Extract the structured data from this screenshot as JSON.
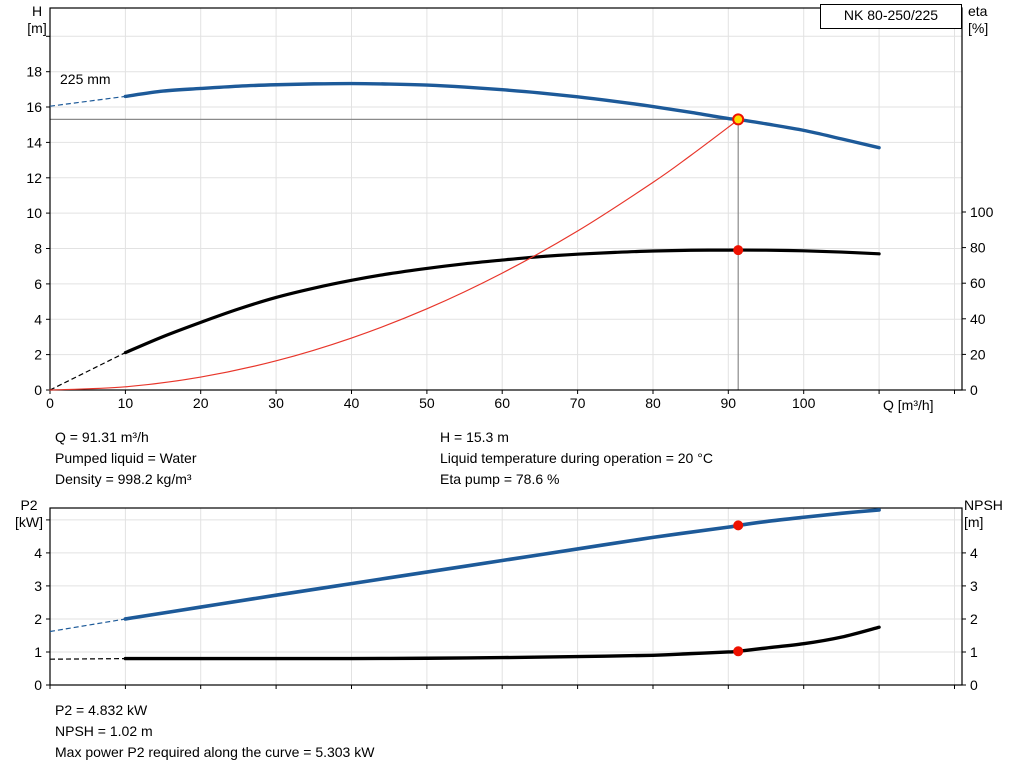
{
  "model_label": "NK 80-250/225",
  "impeller_label": "225 mm",
  "colors": {
    "curve_blue": "#1d5a99",
    "curve_black": "#000000",
    "curve_red": "#e8362b",
    "marker_red": "#ee1100",
    "marker_yellow": "#ffdd00",
    "crosshair_gray": "#8a8a8a",
    "grid": "#e2e2e2"
  },
  "info_top": {
    "col1": [
      "Q = 91.31 m³/h",
      "Pumped liquid = Water",
      "Density = 998.2 kg/m³"
    ],
    "col2": [
      "H = 15.3 m",
      "Liquid temperature during operation = 20 °C",
      "Eta pump = 78.6 %"
    ]
  },
  "info_bottom": [
    "P2 = 4.832 kW",
    "NPSH = 1.02 m",
    "Max power P2 required along the curve = 5.303 kW"
  ],
  "chart_data": [
    {
      "type": "line",
      "name": "qh-eta-chart",
      "xlabel": "Q [m³/h]",
      "ylabel_left_lines": [
        "H",
        "[m]"
      ],
      "ylabel_right_lines": [
        "eta",
        "[%]"
      ],
      "xlim": [
        0,
        121
      ],
      "ylim_left": [
        0,
        21.6
      ],
      "ylim_right": [
        0,
        214.6
      ],
      "x_ticks": [
        [
          0,
          "0"
        ],
        [
          10,
          "10"
        ],
        [
          20,
          "20"
        ],
        [
          30,
          "30"
        ],
        [
          40,
          "40"
        ],
        [
          50,
          "50"
        ],
        [
          60,
          "60"
        ],
        [
          70,
          "70"
        ],
        [
          80,
          "80"
        ],
        [
          90,
          "90"
        ],
        [
          100,
          "100"
        ],
        [
          110,
          ""
        ],
        [
          120,
          ""
        ]
      ],
      "y_ticks_left": [
        [
          0,
          "0"
        ],
        [
          2,
          "2"
        ],
        [
          4,
          "4"
        ],
        [
          6,
          "6"
        ],
        [
          8,
          "8"
        ],
        [
          10,
          "10"
        ],
        [
          12,
          "12"
        ],
        [
          14,
          "14"
        ],
        [
          16,
          "16"
        ],
        [
          18,
          "18"
        ],
        [
          20,
          ""
        ]
      ],
      "y_ticks_right": [
        [
          0,
          "0"
        ],
        [
          20,
          "20"
        ],
        [
          40,
          "40"
        ],
        [
          60,
          "60"
        ],
        [
          80,
          "80"
        ],
        [
          100,
          "100"
        ]
      ],
      "crosshair": {
        "q": 91.31,
        "v": 15.3
      },
      "duty_point": {
        "Q_m3h": 91.31,
        "H_m": 15.3,
        "eta_pct": 78.6
      },
      "series": [
        {
          "name": "head-curve-225mm",
          "axis": "left",
          "color": "curve_blue",
          "width": 3.4,
          "lead": [
            [
              0,
              16.05
            ],
            [
              10,
              16.6
            ]
          ],
          "points": [
            [
              10,
              16.6
            ],
            [
              15,
              16.9
            ],
            [
              20,
              17.05
            ],
            [
              25,
              17.18
            ],
            [
              30,
              17.26
            ],
            [
              35,
              17.31
            ],
            [
              40,
              17.33
            ],
            [
              45,
              17.3
            ],
            [
              50,
              17.24
            ],
            [
              55,
              17.13
            ],
            [
              60,
              16.98
            ],
            [
              65,
              16.8
            ],
            [
              70,
              16.58
            ],
            [
              75,
              16.32
            ],
            [
              80,
              16.03
            ],
            [
              85,
              15.7
            ],
            [
              90,
              15.35
            ],
            [
              91.31,
              15.3
            ],
            [
              95,
              15.05
            ],
            [
              100,
              14.68
            ],
            [
              105,
              14.2
            ],
            [
              110,
              13.7
            ]
          ]
        },
        {
          "name": "efficiency-curve",
          "axis": "right",
          "color": "curve_black",
          "width": 3.2,
          "lead": [
            [
              0,
              0
            ],
            [
              10,
              21
            ]
          ],
          "points": [
            [
              10,
              21
            ],
            [
              15,
              30
            ],
            [
              20,
              38
            ],
            [
              25,
              45.5
            ],
            [
              30,
              52
            ],
            [
              35,
              57.2
            ],
            [
              40,
              61.6
            ],
            [
              45,
              65.3
            ],
            [
              50,
              68.3
            ],
            [
              55,
              70.9
            ],
            [
              60,
              73
            ],
            [
              65,
              74.9
            ],
            [
              70,
              76.3
            ],
            [
              75,
              77.3
            ],
            [
              80,
              78.1
            ],
            [
              85,
              78.5
            ],
            [
              90,
              78.6
            ],
            [
              95,
              78.55
            ],
            [
              100,
              78.2
            ],
            [
              105,
              77.5
            ],
            [
              110,
              76.5
            ]
          ]
        },
        {
          "name": "system-curve",
          "axis": "left",
          "color": "curve_red",
          "width": 1.2,
          "points": [
            [
              0,
              0
            ],
            [
              10,
              0.18
            ],
            [
              20,
              0.73
            ],
            [
              30,
              1.65
            ],
            [
              40,
              2.94
            ],
            [
              50,
              4.59
            ],
            [
              60,
              6.61
            ],
            [
              70,
              8.99
            ],
            [
              80,
              11.74
            ],
            [
              85,
              13.26
            ],
            [
              90,
              14.86
            ],
            [
              91.31,
              15.3
            ]
          ]
        }
      ],
      "markers": [
        {
          "name": "duty-point-head-marker",
          "axis": "left",
          "q": 91.31,
          "v": 15.3,
          "style": "yellow"
        },
        {
          "name": "duty-point-eta-marker",
          "axis": "right",
          "q": 91.31,
          "v": 78.6,
          "style": "red"
        }
      ]
    },
    {
      "type": "line",
      "name": "p2-npsh-chart",
      "ylabel_left_lines": [
        "P2",
        "[kW]"
      ],
      "ylabel_right_lines": [
        "NPSH",
        "[m]"
      ],
      "xlim": [
        0,
        121
      ],
      "ylim_left": [
        0,
        5.36
      ],
      "ylim_right": [
        0,
        5.36
      ],
      "x_ticks": [
        [
          0,
          ""
        ],
        [
          10,
          ""
        ],
        [
          20,
          ""
        ],
        [
          30,
          ""
        ],
        [
          40,
          ""
        ],
        [
          50,
          ""
        ],
        [
          60,
          ""
        ],
        [
          70,
          ""
        ],
        [
          80,
          ""
        ],
        [
          90,
          ""
        ],
        [
          100,
          ""
        ],
        [
          110,
          ""
        ],
        [
          120,
          ""
        ]
      ],
      "y_ticks_left": [
        [
          0,
          "0"
        ],
        [
          1,
          "1"
        ],
        [
          2,
          "2"
        ],
        [
          3,
          "3"
        ],
        [
          4,
          "4"
        ],
        [
          5,
          ""
        ]
      ],
      "y_ticks_right": [
        [
          0,
          "0"
        ],
        [
          1,
          "1"
        ],
        [
          2,
          "2"
        ],
        [
          3,
          "3"
        ],
        [
          4,
          "4"
        ]
      ],
      "duty_point": {
        "Q_m3h": 91.31,
        "P2_kW": 4.832,
        "NPSH_m": 1.02
      },
      "series": [
        {
          "name": "p2-curve",
          "axis": "left",
          "color": "curve_blue",
          "width": 3.6,
          "lead": [
            [
              0,
              1.62
            ],
            [
              10,
              2.0
            ]
          ],
          "points": [
            [
              10,
              2.0
            ],
            [
              20,
              2.36
            ],
            [
              30,
              2.72
            ],
            [
              40,
              3.07
            ],
            [
              50,
              3.42
            ],
            [
              60,
              3.77
            ],
            [
              70,
              4.12
            ],
            [
              80,
              4.47
            ],
            [
              90,
              4.78
            ],
            [
              91.31,
              4.832
            ],
            [
              95,
              4.95
            ],
            [
              100,
              5.08
            ],
            [
              105,
              5.2
            ],
            [
              110,
              5.3
            ]
          ]
        },
        {
          "name": "npsh-curve",
          "axis": "right",
          "color": "curve_black",
          "width": 3.4,
          "lead": [
            [
              0,
              0.78
            ],
            [
              10,
              0.8
            ]
          ],
          "points": [
            [
              10,
              0.8
            ],
            [
              20,
              0.8
            ],
            [
              30,
              0.8
            ],
            [
              40,
              0.8
            ],
            [
              50,
              0.81
            ],
            [
              60,
              0.83
            ],
            [
              70,
              0.86
            ],
            [
              80,
              0.9
            ],
            [
              85,
              0.95
            ],
            [
              90,
              1.0
            ],
            [
              91.31,
              1.02
            ],
            [
              95,
              1.12
            ],
            [
              100,
              1.25
            ],
            [
              105,
              1.45
            ],
            [
              110,
              1.75
            ]
          ]
        }
      ],
      "markers": [
        {
          "name": "duty-point-p2-marker",
          "axis": "left",
          "q": 91.31,
          "v": 4.832,
          "style": "red"
        },
        {
          "name": "duty-point-npsh-marker",
          "axis": "right",
          "q": 91.31,
          "v": 1.02,
          "style": "red"
        }
      ]
    }
  ]
}
